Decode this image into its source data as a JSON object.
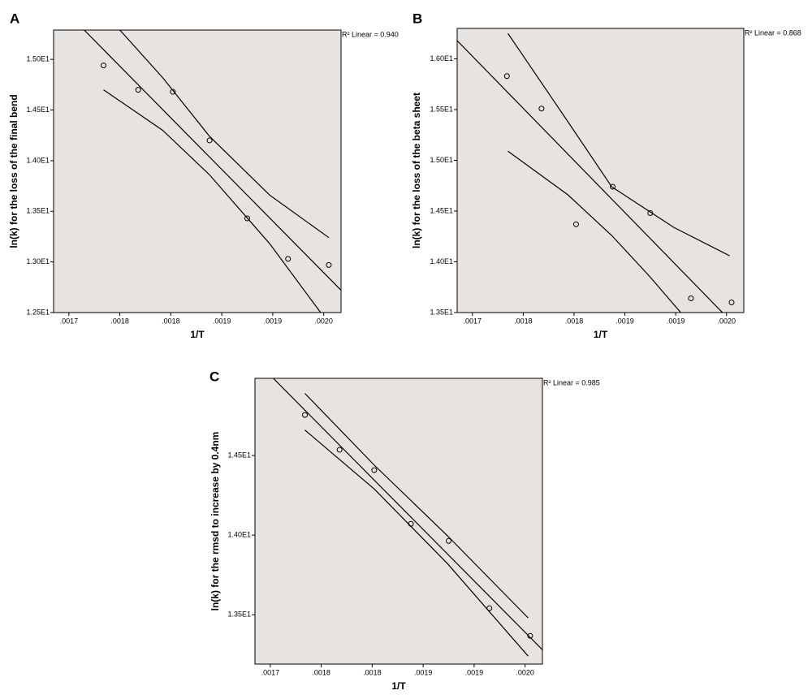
{
  "chart_data": [
    {
      "type": "scatter",
      "panel": "A",
      "annotation": "R² Linear = 0.940",
      "xlabel": "1/T",
      "ylabel": "ln(k) for the loss of the final bend",
      "plot_bg": "#e7e3e0",
      "color": "#000000",
      "xlim": [
        0.001685,
        0.001967
      ],
      "ylim": [
        12.5,
        15.29
      ],
      "xticks": [
        {
          "value": 0.0017,
          "label": ".0017"
        },
        {
          "value": 0.00175,
          "label": ".0018"
        },
        {
          "value": 0.0018,
          "label": ".0018"
        },
        {
          "value": 0.00185,
          "label": ".0019"
        },
        {
          "value": 0.0019,
          "label": ".0019"
        },
        {
          "value": 0.00195,
          "label": ".0020"
        }
      ],
      "yticks": [
        {
          "value": 12.5,
          "label": "1.25E1"
        },
        {
          "value": 13,
          "label": "1.30E1"
        },
        {
          "value": 13.5,
          "label": "1.35E1"
        },
        {
          "value": 14,
          "label": "1.40E1"
        },
        {
          "value": 14.5,
          "label": "1.45E1"
        },
        {
          "value": 15,
          "label": "1.50E1"
        }
      ],
      "x": [
        0.001734,
        0.001768,
        0.001802,
        0.001838,
        0.001875,
        0.001915,
        0.001955
      ],
      "values": [
        14.94,
        14.7,
        14.68,
        14.2,
        13.43,
        13.03,
        12.97
      ],
      "fit_line": {
        "x": [
          0.001715,
          0.001969
        ],
        "y": [
          15.29,
          12.7
        ]
      },
      "ci_upper": {
        "x": [
          0.00175,
          0.001792,
          0.001838,
          0.001897,
          0.001955
        ],
        "y": [
          15.29,
          14.82,
          14.24,
          13.66,
          13.24
        ]
      },
      "ci_lower": {
        "x": [
          0.001734,
          0.001792,
          0.001838,
          0.001897,
          0.001947
        ],
        "y": [
          14.7,
          14.3,
          13.86,
          13.18,
          12.5
        ]
      }
    },
    {
      "type": "scatter",
      "panel": "B",
      "annotation": "R² Linear = 0.868",
      "xlabel": "1/T",
      "ylabel": "ln(k) for the loss of the beta sheet",
      "plot_bg": "#e7e3e0",
      "color": "#000000",
      "xlim": [
        0.001685,
        0.001967
      ],
      "ylim": [
        13.5,
        16.3
      ],
      "xticks": [
        {
          "value": 0.0017,
          "label": ".0017"
        },
        {
          "value": 0.00175,
          "label": ".0018"
        },
        {
          "value": 0.0018,
          "label": ".0018"
        },
        {
          "value": 0.00185,
          "label": ".0019"
        },
        {
          "value": 0.0019,
          "label": ".0019"
        },
        {
          "value": 0.00195,
          "label": ".0020"
        }
      ],
      "yticks": [
        {
          "value": 13.5,
          "label": "1.35E1"
        },
        {
          "value": 14,
          "label": "1.40E1"
        },
        {
          "value": 14.5,
          "label": "1.45E1"
        },
        {
          "value": 15,
          "label": "1.50E1"
        },
        {
          "value": 15.5,
          "label": "1.55E1"
        },
        {
          "value": 16,
          "label": "1.60E1"
        }
      ],
      "x": [
        0.001734,
        0.001768,
        0.001802,
        0.001838,
        0.001875,
        0.001915,
        0.001955
      ],
      "values": [
        15.83,
        15.51,
        14.37,
        14.74,
        14.48,
        13.64,
        13.6
      ],
      "fit_line": {
        "x": [
          0.001685,
          0.001946
        ],
        "y": [
          16.18,
          13.5
        ]
      },
      "ci_upper": {
        "x": [
          0.001735,
          0.001794,
          0.001837,
          0.001898,
          0.001953
        ],
        "y": [
          16.25,
          15.38,
          14.74,
          14.34,
          14.06
        ]
      },
      "ci_lower": {
        "x": [
          0.001735,
          0.001794,
          0.001837,
          0.001874,
          0.001905
        ],
        "y": [
          15.09,
          14.66,
          14.26,
          13.86,
          13.5
        ]
      }
    },
    {
      "type": "scatter",
      "panel": "C",
      "annotation": "R² Linear = 0.985",
      "xlabel": "1/T",
      "ylabel": "ln(k) for the rmsd to increase by 0.4nm",
      "plot_bg": "#e7e3e0",
      "color": "#000000",
      "xlim": [
        0.001685,
        0.001967
      ],
      "ylim": [
        13.19,
        14.985
      ],
      "xticks": [
        {
          "value": 0.0017,
          "label": ".0017"
        },
        {
          "value": 0.00175,
          "label": ".0018"
        },
        {
          "value": 0.0018,
          "label": ".0018"
        },
        {
          "value": 0.00185,
          "label": ".0019"
        },
        {
          "value": 0.0019,
          "label": ".0019"
        },
        {
          "value": 0.00195,
          "label": ".0020"
        }
      ],
      "yticks": [
        {
          "value": 13.5,
          "label": "1.35E1"
        },
        {
          "value": 14,
          "label": "1.40E1"
        },
        {
          "value": 14.5,
          "label": "1.45E1"
        }
      ],
      "x": [
        0.001734,
        0.001768,
        0.001802,
        0.001838,
        0.001875,
        0.001915,
        0.001955
      ],
      "values": [
        14.755,
        14.536,
        14.408,
        14.071,
        13.964,
        13.541,
        13.367
      ],
      "fit_line": {
        "x": [
          0.001703,
          0.001967
        ],
        "y": [
          14.985,
          13.28
        ]
      },
      "ci_upper": {
        "x": [
          0.001734,
          0.001802,
          0.001874,
          0.001953
        ],
        "y": [
          14.89,
          14.44,
          13.995,
          13.48
        ]
      },
      "ci_lower": {
        "x": [
          0.001734,
          0.001802,
          0.001874,
          0.001953
        ],
        "y": [
          14.66,
          14.29,
          13.82,
          13.24
        ]
      }
    }
  ]
}
